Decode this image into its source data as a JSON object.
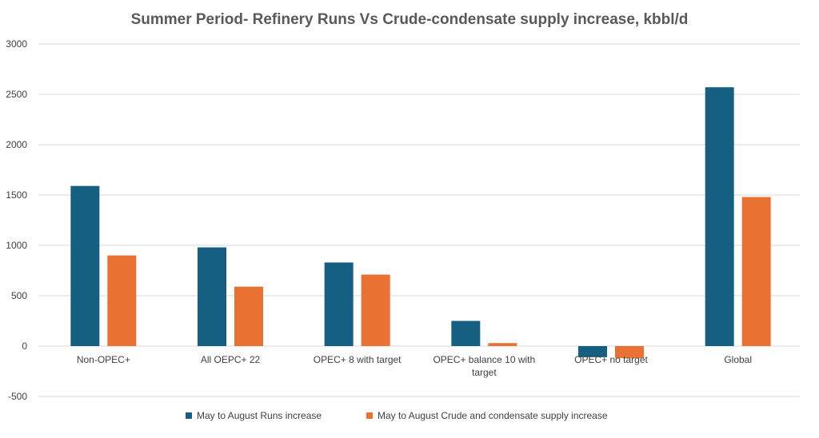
{
  "chart_data": {
    "type": "bar",
    "title": "Summer Period- Refinery Runs Vs Crude-condensate supply increase, kbbl/d",
    "xlabel": "",
    "ylabel": "",
    "ylim": [
      -500,
      3000
    ],
    "yticks": [
      3000,
      2500,
      2000,
      1500,
      1000,
      500,
      0,
      -500
    ],
    "ytick_labels": [
      "3000",
      "2500",
      "2000",
      "1500",
      "1000",
      "500",
      "0",
      "-500"
    ],
    "grid": true,
    "legend_position": "bottom",
    "categories": [
      [
        "Non-OPEC+"
      ],
      [
        "All OEPC+ 22"
      ],
      [
        "OPEC+ 8 with target"
      ],
      [
        "OPEC+ balance 10 with",
        "target"
      ],
      [
        "OPEC+ no target"
      ],
      [
        "Global"
      ]
    ],
    "series": [
      {
        "name": "May to August Runs increase",
        "color": "#156082",
        "values": [
          1590,
          980,
          830,
          250,
          -110,
          2570
        ]
      },
      {
        "name": "May to August Crude and condensate supply increase",
        "color": "#E97132",
        "values": [
          900,
          590,
          710,
          30,
          -120,
          1480
        ]
      }
    ]
  }
}
